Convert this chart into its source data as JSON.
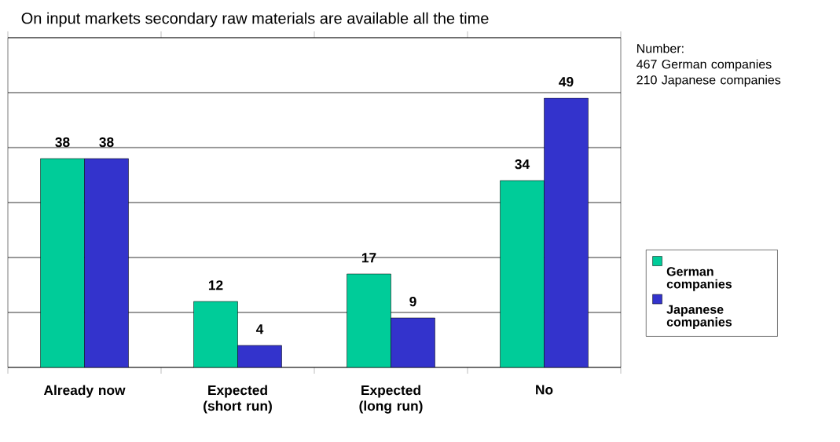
{
  "chart_data": {
    "type": "bar",
    "title": "On input markets secondary raw materials are available all the time",
    "categories": [
      "Already now",
      "Expected (short run)",
      "Expected (long run)",
      "No"
    ],
    "series": [
      {
        "name": "German companies",
        "color": "#00cc99",
        "values": [
          38,
          12,
          17,
          34
        ]
      },
      {
        "name": "Japanese companies",
        "color": "#3333cc",
        "values": [
          38,
          4,
          9,
          49
        ]
      }
    ],
    "ylim": [
      0,
      60
    ],
    "yticks": [
      {
        "value": 0,
        "label": null
      },
      {
        "value": 10,
        "label": null
      },
      {
        "value": 20,
        "label": null
      },
      {
        "value": 30,
        "label": null
      },
      {
        "value": 40,
        "label": null
      },
      {
        "value": 50,
        "label": null
      },
      {
        "value": 60,
        "label": null
      }
    ],
    "tick_labels": "x",
    "grid": "y",
    "legend": "right",
    "data_labels": true,
    "annotations": [
      "Number:",
      "467 German companies",
      "210 Japanese companies"
    ]
  }
}
